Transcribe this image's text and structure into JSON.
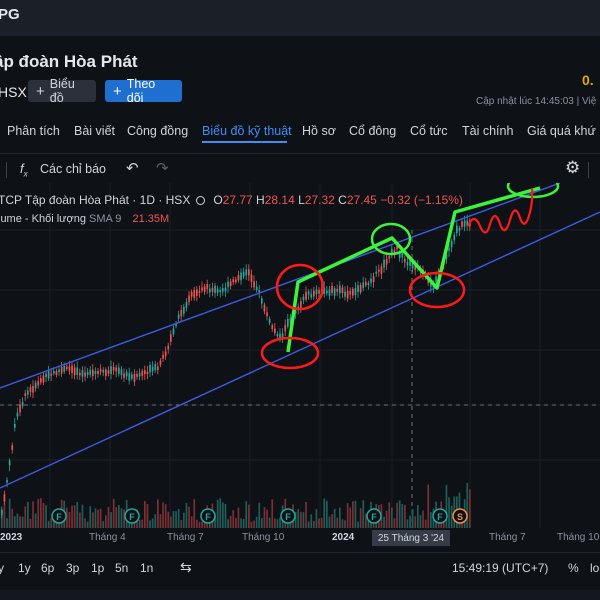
{
  "header": {
    "ticker_partial": "PG",
    "company_name": "ập đoàn Hòa Phát",
    "exchange": "HSX",
    "chart_button": "Biểu đồ",
    "follow_button": "Theo dõi",
    "price_partial": "0.",
    "updated_text": "Cập nhật lúc  14:45:03 | Việ"
  },
  "tabs": [
    "Phân tích",
    "Bài viết",
    "Công đồng",
    "Biểu đồ kỹ thuật",
    "Hồ sơ",
    "Cổ đông",
    "Cổ tức",
    "Tài chính",
    "Giá quá khứ"
  ],
  "toolbar": {
    "indicators_label": "Các chỉ báo",
    "undo_icon": "undo-icon",
    "redo_icon": "redo-icon",
    "settings_icon": "gear-icon"
  },
  "legend": {
    "symbol_title": "TCP Tập đoàn Hòa Phát · 1D · HSX",
    "open_label": "O",
    "open_value": "27.77",
    "high_label": "H",
    "high_value": "28.14",
    "low_label": "L",
    "low_value": "27.32",
    "close_label": "C",
    "close_value": "27.45",
    "change": "−0.32 (−1.15%)",
    "volume_title": "lume - Khối lượng",
    "sma_label": "SMA 9",
    "volume_value": "21.35M"
  },
  "xaxis": {
    "labels": [
      "2023",
      "Tháng 4",
      "Tháng 7",
      "Tháng 10",
      "2024",
      "Tháng 7",
      "Tháng 10"
    ],
    "crosshair_date": "25 Tháng 3 '24"
  },
  "event_markers": {
    "f": "F",
    "s": "S"
  },
  "bottombar": {
    "ranges": [
      "y",
      "1y",
      "6p",
      "3p",
      "1p",
      "5n",
      "1n"
    ],
    "time": "15:49:19 (UTC+7)",
    "percent": "%",
    "log_partial": "lo"
  },
  "colors": {
    "background": "#0e1217",
    "up_candle": "#26a69a",
    "down_candle": "#ef5350",
    "channel_line": "#3d5be0",
    "annotation_green": "#3cf23c",
    "annotation_red": "#ff1a1a",
    "accent": "#3e8ef7"
  }
}
